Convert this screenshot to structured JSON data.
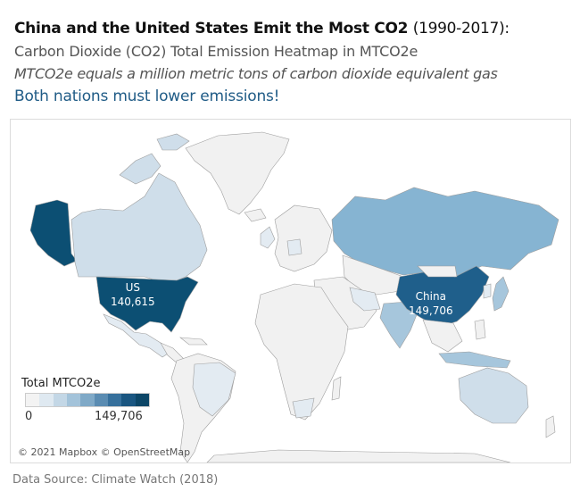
{
  "title": {
    "main": "China and the United States Emit the Most CO2",
    "years": "(1990-2017):"
  },
  "subtitle": "Carbon Dioxide (CO2) Total Emission Heatmap in MTCO2e",
  "note": "MTCO2e equals a million metric tons of carbon dioxide equivalent gas",
  "callout": "Both nations must lower emissions!",
  "map": {
    "labels": {
      "us": {
        "name": "US",
        "value": "140,615"
      },
      "china": {
        "name": "China",
        "value": "149,706"
      }
    },
    "colors": {
      "top": "#0c4f73",
      "high": "#1f5f8b",
      "russia": "#86b4d2",
      "mid": "#a6c6dc",
      "canada": "#cfdeea",
      "low": "#e3ebf2",
      "minimal": "#f1f1f1",
      "border": "#9e9e9e"
    }
  },
  "legend": {
    "title": "Total MTCO2e",
    "min": "0",
    "max": "149,706",
    "swatches": [
      "#f3f3f3",
      "#dfe9f1",
      "#c3d7e6",
      "#a3c3da",
      "#7fa9c7",
      "#5a8cb2",
      "#36709c",
      "#1a5681",
      "#0c4667"
    ]
  },
  "attribution": "© 2021 Mapbox © OpenStreetMap",
  "source": "Data Source: Climate Watch (2018)"
}
